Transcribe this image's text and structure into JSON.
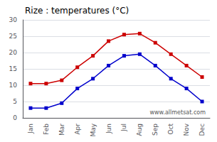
{
  "chart_data": {
    "type": "line",
    "title": "Rize : temperatures (°C)",
    "categories": [
      "Jan",
      "Feb",
      "Mar",
      "Apr",
      "May",
      "Jun",
      "Jul",
      "Aug",
      "Sep",
      "Oct",
      "Nov",
      "Dec"
    ],
    "series": [
      {
        "color": "#cc0000",
        "values": [
          10.5,
          10.5,
          11.5,
          15.5,
          19.0,
          23.5,
          25.5,
          25.8,
          23.0,
          19.5,
          16.0,
          12.5
        ]
      },
      {
        "color": "#0000cc",
        "values": [
          3.0,
          3.0,
          4.5,
          9.0,
          12.0,
          16.0,
          19.0,
          19.5,
          16.0,
          12.0,
          9.0,
          5.0
        ]
      }
    ],
    "ylim": [
      0,
      30
    ],
    "yticks": [
      0,
      5,
      10,
      15,
      20,
      25,
      30
    ],
    "grid": true,
    "marker": "square",
    "annotations": [
      "www.allmetsat.com"
    ]
  }
}
